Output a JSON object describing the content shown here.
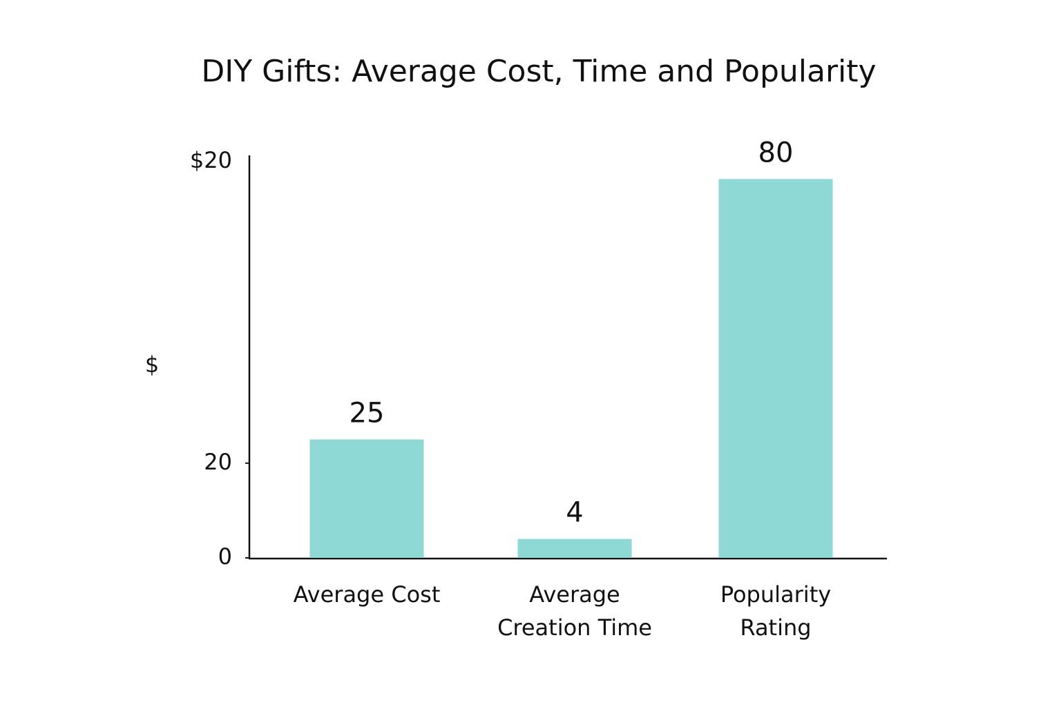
{
  "chart_data": {
    "type": "bar",
    "title": "DIY Gifts: Average Cost, Time and Popularity",
    "y_label": "$",
    "annotations": [
      "$20"
    ],
    "categories": [
      "Average Cost",
      "Average Creation Time",
      "Popularity Rating"
    ],
    "values": [
      25,
      4,
      80
    ],
    "color": "#8ed9d5",
    "ylim": [
      0,
      85
    ],
    "yticks": [
      0,
      20
    ],
    "grid": false
  }
}
